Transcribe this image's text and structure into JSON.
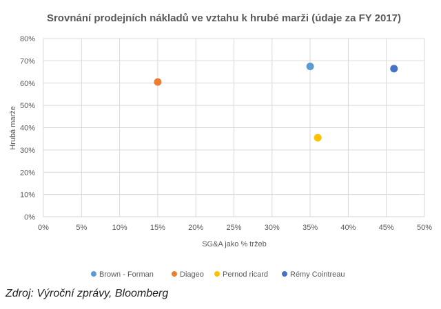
{
  "chart_data": {
    "type": "scatter",
    "title": "Srovnání prodejních nákladů ve vztahu k hrubé marži (údaje za FY 2017)",
    "xlabel": "SG&A jako % tržeb",
    "ylabel": "Hrubá marže",
    "xlim": [
      0,
      50
    ],
    "ylim": [
      0,
      80
    ],
    "x_ticks": [
      "0%",
      "5%",
      "10%",
      "15%",
      "20%",
      "25%",
      "30%",
      "35%",
      "40%",
      "45%",
      "50%"
    ],
    "y_ticks": [
      "0%",
      "10%",
      "20%",
      "30%",
      "40%",
      "50%",
      "60%",
      "70%",
      "80%"
    ],
    "grid": true,
    "legend_position": "bottom",
    "series": [
      {
        "name": "Brown - Forman",
        "color": "#5B9BD5",
        "x": [
          35.0
        ],
        "y": [
          67.5
        ]
      },
      {
        "name": "Diageo",
        "color": "#ED7D31",
        "x": [
          15.0
        ],
        "y": [
          60.5
        ]
      },
      {
        "name": "Pernod ricard",
        "color": "#FFC000",
        "x": [
          36.0
        ],
        "y": [
          35.5
        ]
      },
      {
        "name": "Rémy Cointreau",
        "color": "#4472C4",
        "x": [
          46.0
        ],
        "y": [
          66.5
        ]
      }
    ]
  },
  "source_text": "Zdroj: Výroční zprávy, Bloomberg"
}
